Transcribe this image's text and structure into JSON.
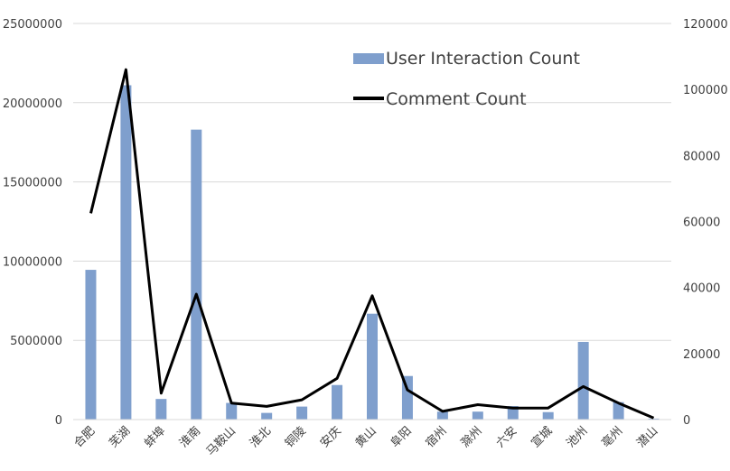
{
  "chart_data": {
    "type": "bar+line",
    "categories": [
      "合肥",
      "芜湖",
      "蚌埠",
      "淮南",
      "马鞍山",
      "淮北",
      "铜陵",
      "安庆",
      "黄山",
      "阜阳",
      "宿州",
      "滁州",
      "六安",
      "宣城",
      "池州",
      "亳州",
      "潜山"
    ],
    "series": [
      {
        "name": "User Interaction Count",
        "type": "bar",
        "axis": "left",
        "color": "#7f9fcd",
        "values": [
          9450000,
          21100000,
          1300000,
          18300000,
          1050000,
          420000,
          820000,
          2180000,
          6680000,
          2750000,
          500000,
          500000,
          850000,
          470000,
          4900000,
          1100000,
          60000
        ]
      },
      {
        "name": "Comment Count",
        "type": "line",
        "axis": "right",
        "color": "#000000",
        "values": [
          62500,
          106000,
          8000,
          38000,
          5000,
          4000,
          6000,
          12500,
          37500,
          9000,
          2500,
          4500,
          3500,
          3500,
          10000,
          5000,
          500
        ]
      }
    ],
    "y_left": {
      "min": 0,
      "max": 25000000,
      "ticks": [
        "0",
        "5000000",
        "10000000",
        "15000000",
        "20000000",
        "25000000"
      ]
    },
    "y_right": {
      "min": 0,
      "max": 120000,
      "ticks": [
        "0",
        "20000",
        "40000",
        "60000",
        "80000",
        "100000",
        "120000"
      ]
    },
    "grid": true,
    "legend_position": "top-right-inside"
  }
}
